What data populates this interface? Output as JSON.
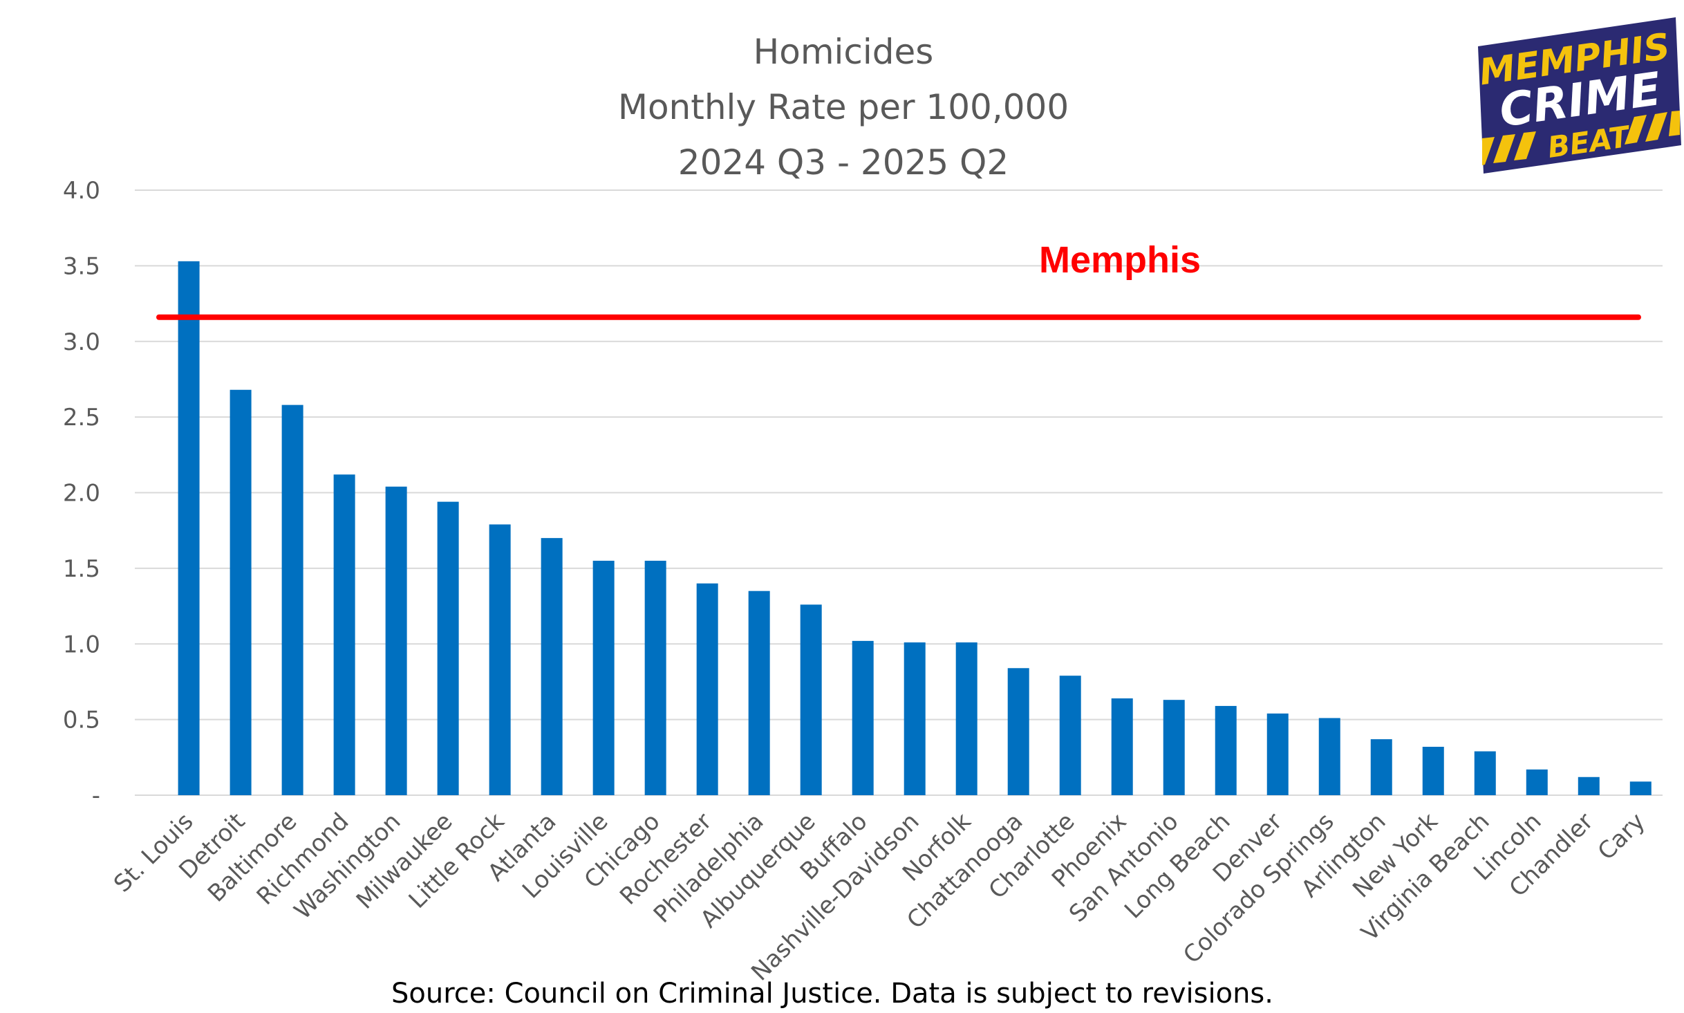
{
  "chart_data": {
    "type": "bar",
    "title": "Homicides",
    "subtitle_lines": [
      "Monthly Rate per 100,000",
      "2024 Q3 - 2025 Q2"
    ],
    "xlabel": "",
    "ylabel": "",
    "ylim": [
      0,
      4.0
    ],
    "y_ticks": [
      0,
      0.5,
      1.0,
      1.5,
      2.0,
      2.5,
      3.0,
      3.5,
      4.0
    ],
    "y_tick_labels": [
      "-",
      "0.5",
      "1.0",
      "1.5",
      "2.0",
      "2.5",
      "3.0",
      "3.5",
      "4.0"
    ],
    "grid": true,
    "bar_color": "#0070c0",
    "categories": [
      "St. Louis",
      "Detroit",
      "Baltimore",
      "Richmond",
      "Washington",
      "Milwaukee",
      "Little Rock",
      "Atlanta",
      "Louisville",
      "Chicago",
      "Rochester",
      "Philadelphia",
      "Albuquerque",
      "Buffalo",
      "Nashville-Davidson",
      "Norfolk",
      "Chattanooga",
      "Charlotte",
      "Phoenix",
      "San Antonio",
      "Long Beach",
      "Denver",
      "Colorado Springs",
      "Arlington",
      "New York",
      "Virginia Beach",
      "Lincoln",
      "Chandler",
      "Cary"
    ],
    "values": [
      3.53,
      2.68,
      2.58,
      2.12,
      2.04,
      1.94,
      1.79,
      1.7,
      1.55,
      1.55,
      1.4,
      1.35,
      1.26,
      1.02,
      1.01,
      1.01,
      0.84,
      0.79,
      0.64,
      0.63,
      0.59,
      0.54,
      0.51,
      0.37,
      0.32,
      0.29,
      0.17,
      0.12,
      0.09
    ],
    "reference_line": {
      "label": "Memphis",
      "value": 3.16,
      "color": "#ff0000"
    }
  },
  "source_note": "Source: Council on Criminal Justice.  Data is subject to revisions.",
  "logo": {
    "lines": [
      "MEMPHIS",
      "CRIME",
      "BEAT"
    ],
    "colors": {
      "navy": "#2b2a72",
      "yellow": "#f4c20d"
    }
  }
}
